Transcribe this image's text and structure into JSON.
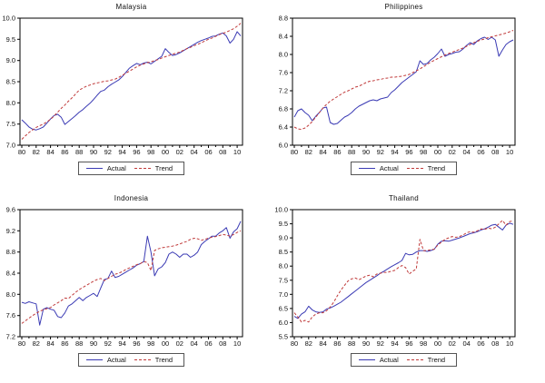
{
  "style": {
    "actual_color": "#3a3ab4",
    "trend_color": "#c03a3a",
    "axis_color": "#000000",
    "text_color": "#111111",
    "background": "#ffffff"
  },
  "legend": {
    "actual": "Actual",
    "trend": "Trend"
  },
  "x_axis": {
    "xlim": [
      1979.75,
      2010.75
    ],
    "first_tick": 1980,
    "last_tick": 2010,
    "tick_step_years": 2,
    "minor_step_years": 1,
    "tick_labels": [
      "80",
      "82",
      "84",
      "86",
      "88",
      "90",
      "92",
      "94",
      "96",
      "98",
      "00",
      "02",
      "04",
      "06",
      "08",
      "10"
    ]
  },
  "chart_data": [
    {
      "type": "line",
      "title": "Malaysia",
      "ylim": [
        7.0,
        10.0
      ],
      "yticks": [
        7.0,
        7.5,
        8.0,
        8.5,
        9.0,
        9.5,
        10.0
      ],
      "x_start": 1980,
      "x_step": 0.5,
      "legend": [
        "Actual",
        "Trend"
      ],
      "grid": false,
      "series": [
        {
          "name": "Actual",
          "values": [
            7.6,
            7.52,
            7.43,
            7.38,
            7.36,
            7.39,
            7.43,
            7.52,
            7.62,
            7.7,
            7.73,
            7.66,
            7.49,
            7.56,
            7.63,
            7.7,
            7.78,
            7.84,
            7.92,
            7.99,
            8.08,
            8.18,
            8.27,
            8.3,
            8.38,
            8.44,
            8.49,
            8.54,
            8.62,
            8.72,
            8.82,
            8.88,
            8.93,
            8.9,
            8.94,
            8.96,
            8.92,
            8.98,
            9.04,
            9.1,
            9.28,
            9.19,
            9.12,
            9.14,
            9.18,
            9.23,
            9.28,
            9.33,
            9.38,
            9.43,
            9.47,
            9.5,
            9.53,
            9.57,
            9.58,
            9.62,
            9.65,
            9.58,
            9.41,
            9.5,
            9.68,
            9.58
          ]
        },
        {
          "name": "Trend",
          "values": [
            7.14,
            7.22,
            7.3,
            7.36,
            7.42,
            7.46,
            7.5,
            7.55,
            7.61,
            7.69,
            7.78,
            7.87,
            7.95,
            8.04,
            8.12,
            8.21,
            8.3,
            8.35,
            8.39,
            8.42,
            8.45,
            8.47,
            8.49,
            8.51,
            8.52,
            8.54,
            8.56,
            8.6,
            8.65,
            8.7,
            8.75,
            8.8,
            8.85,
            8.89,
            8.92,
            8.95,
            8.97,
            9.0,
            9.02,
            9.06,
            9.09,
            9.12,
            9.15,
            9.17,
            9.2,
            9.24,
            9.28,
            9.31,
            9.35,
            9.38,
            9.42,
            9.46,
            9.5,
            9.53,
            9.57,
            9.61,
            9.64,
            9.67,
            9.71,
            9.75,
            9.81,
            9.88
          ]
        }
      ]
    },
    {
      "type": "line",
      "title": "Philippines",
      "ylim": [
        6.0,
        8.8
      ],
      "yticks": [
        6.0,
        6.4,
        6.8,
        7.2,
        7.6,
        8.0,
        8.4,
        8.8
      ],
      "x_start": 1980,
      "x_step": 0.5,
      "legend": [
        "Actual",
        "Trend"
      ],
      "grid": false,
      "series": [
        {
          "name": "Actual",
          "values": [
            6.62,
            6.76,
            6.8,
            6.72,
            6.66,
            6.54,
            6.64,
            6.72,
            6.82,
            6.84,
            6.5,
            6.46,
            6.48,
            6.55,
            6.62,
            6.66,
            6.72,
            6.8,
            6.86,
            6.9,
            6.94,
            6.98,
            7.0,
            6.98,
            7.02,
            7.04,
            7.06,
            7.16,
            7.22,
            7.3,
            7.38,
            7.44,
            7.5,
            7.56,
            7.62,
            7.86,
            7.78,
            7.8,
            7.88,
            7.94,
            8.02,
            8.12,
            7.96,
            8.0,
            8.02,
            8.05,
            8.06,
            8.12,
            8.2,
            8.26,
            8.22,
            8.3,
            8.35,
            8.38,
            8.33,
            8.38,
            8.32,
            7.96,
            8.1,
            8.22,
            8.28,
            8.32
          ]
        },
        {
          "name": "Trend",
          "values": [
            6.4,
            6.36,
            6.35,
            6.38,
            6.44,
            6.52,
            6.62,
            6.72,
            6.82,
            6.9,
            6.97,
            7.02,
            7.07,
            7.12,
            7.17,
            7.2,
            7.24,
            7.28,
            7.3,
            7.34,
            7.38,
            7.41,
            7.42,
            7.44,
            7.45,
            7.47,
            7.48,
            7.5,
            7.5,
            7.51,
            7.52,
            7.54,
            7.56,
            7.6,
            7.64,
            7.68,
            7.73,
            7.78,
            7.83,
            7.87,
            7.91,
            7.95,
            7.99,
            8.02,
            8.05,
            8.08,
            8.11,
            8.14,
            8.18,
            8.22,
            8.26,
            8.29,
            8.32,
            8.34,
            8.37,
            8.39,
            8.41,
            8.43,
            8.45,
            8.47,
            8.5,
            8.53
          ]
        }
      ]
    },
    {
      "type": "line",
      "title": "Indonesia",
      "ylim": [
        7.2,
        9.6
      ],
      "yticks": [
        7.2,
        7.6,
        8.0,
        8.4,
        8.8,
        9.2,
        9.6
      ],
      "x_start": 1980,
      "x_step": 0.5,
      "legend": [
        "Actual",
        "Trend"
      ],
      "grid": false,
      "series": [
        {
          "name": "Actual",
          "values": [
            7.85,
            7.83,
            7.86,
            7.84,
            7.82,
            7.42,
            7.72,
            7.75,
            7.72,
            7.7,
            7.58,
            7.56,
            7.65,
            7.78,
            7.82,
            7.88,
            7.94,
            7.88,
            7.94,
            7.98,
            8.02,
            7.96,
            8.12,
            8.28,
            8.3,
            8.44,
            8.32,
            8.34,
            8.38,
            8.42,
            8.46,
            8.5,
            8.55,
            8.58,
            8.62,
            9.1,
            8.8,
            8.35,
            8.48,
            8.52,
            8.6,
            8.76,
            8.8,
            8.76,
            8.7,
            8.76,
            8.76,
            8.7,
            8.74,
            8.8,
            8.94,
            9.0,
            9.05,
            9.1,
            9.1,
            9.16,
            9.2,
            9.26,
            9.06,
            9.18,
            9.24,
            9.38
          ]
        },
        {
          "name": "Trend",
          "values": [
            7.45,
            7.5,
            7.55,
            7.6,
            7.64,
            7.68,
            7.71,
            7.73,
            7.75,
            7.8,
            7.84,
            7.88,
            7.93,
            7.92,
            7.98,
            8.04,
            8.09,
            8.13,
            8.17,
            8.21,
            8.25,
            8.28,
            8.3,
            8.26,
            8.3,
            8.34,
            8.38,
            8.4,
            8.43,
            8.47,
            8.5,
            8.53,
            8.56,
            8.58,
            8.62,
            8.6,
            8.45,
            8.83,
            8.86,
            8.88,
            8.89,
            8.9,
            8.91,
            8.93,
            8.95,
            8.98,
            9.0,
            9.04,
            9.06,
            9.05,
            9.02,
            9.04,
            9.06,
            9.08,
            9.09,
            9.11,
            9.13,
            9.12,
            9.1,
            9.13,
            9.17,
            9.2
          ]
        }
      ]
    },
    {
      "type": "line",
      "title": "Thailand",
      "ylim": [
        5.5,
        10.0
      ],
      "yticks": [
        5.5,
        6.0,
        6.5,
        7.0,
        7.5,
        8.0,
        8.5,
        9.0,
        9.5,
        10.0
      ],
      "x_start": 1980,
      "x_step": 0.5,
      "legend": [
        "Actual",
        "Trend"
      ],
      "grid": false,
      "series": [
        {
          "name": "Actual",
          "values": [
            6.22,
            6.15,
            6.3,
            6.38,
            6.58,
            6.45,
            6.38,
            6.36,
            6.38,
            6.48,
            6.52,
            6.58,
            6.65,
            6.72,
            6.82,
            6.92,
            7.02,
            7.12,
            7.22,
            7.32,
            7.42,
            7.5,
            7.58,
            7.66,
            7.75,
            7.82,
            7.9,
            7.98,
            8.05,
            8.12,
            8.2,
            8.45,
            8.4,
            8.42,
            8.5,
            8.55,
            8.55,
            8.52,
            8.55,
            8.6,
            8.78,
            8.88,
            8.9,
            8.88,
            8.92,
            8.96,
            9.0,
            9.05,
            9.1,
            9.15,
            9.18,
            9.22,
            9.28,
            9.32,
            9.38,
            9.45,
            9.48,
            9.38,
            9.28,
            9.45,
            9.52,
            9.48
          ]
        },
        {
          "name": "Trend",
          "values": [
            6.35,
            6.2,
            6.02,
            6.08,
            6.02,
            6.2,
            6.3,
            6.35,
            6.35,
            6.42,
            6.55,
            6.72,
            6.95,
            7.15,
            7.32,
            7.48,
            7.55,
            7.58,
            7.52,
            7.58,
            7.65,
            7.68,
            7.62,
            7.72,
            7.75,
            7.78,
            7.78,
            7.82,
            7.85,
            7.95,
            8.02,
            7.95,
            7.72,
            7.82,
            7.9,
            8.95,
            8.55,
            8.55,
            8.58,
            8.6,
            8.75,
            8.85,
            8.95,
            9.0,
            9.05,
            9.02,
            9.05,
            9.1,
            9.18,
            9.22,
            9.2,
            9.25,
            9.32,
            9.3,
            9.35,
            9.32,
            9.38,
            9.5,
            9.62,
            9.45,
            9.58,
            9.6
          ]
        }
      ]
    }
  ]
}
